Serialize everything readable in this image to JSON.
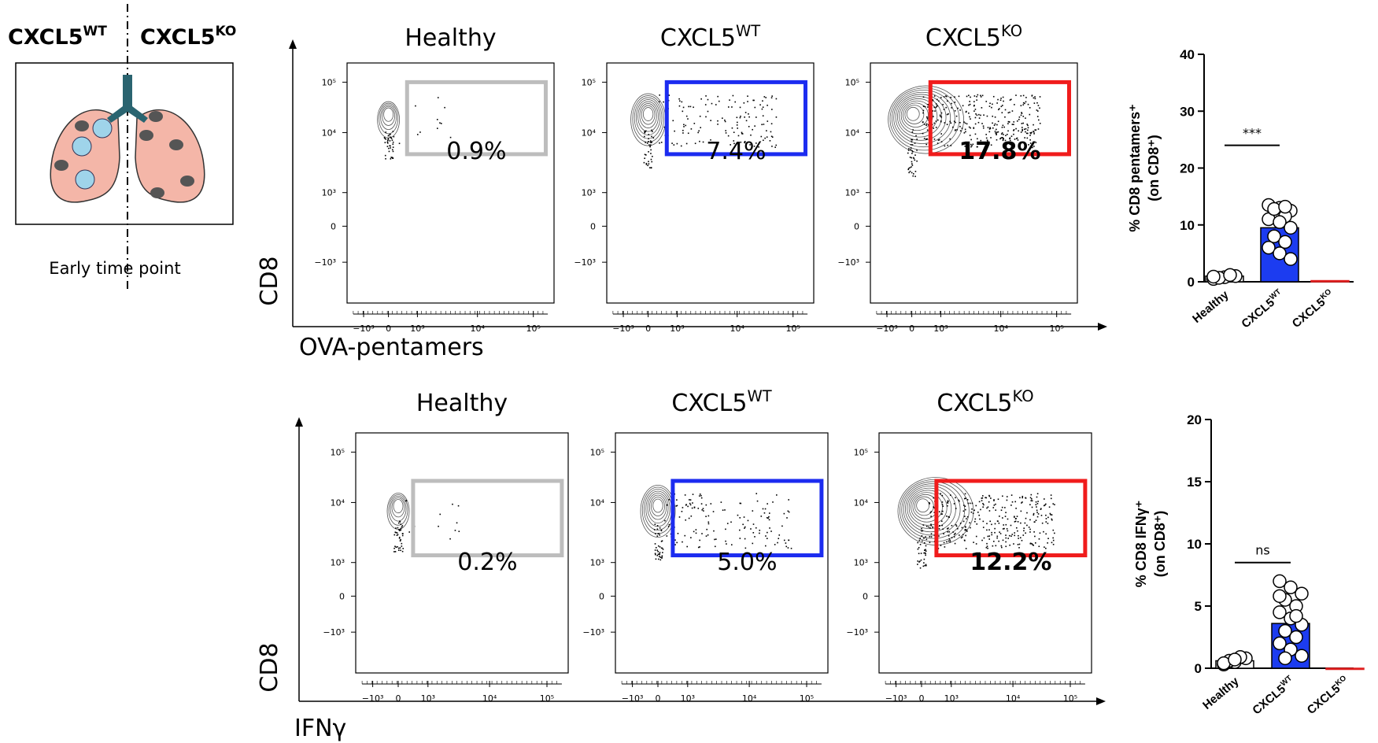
{
  "schematic": {
    "left": {
      "text": "CXCL5",
      "sup": "WT"
    },
    "right": {
      "text": "CXCL5",
      "sup": "KO"
    },
    "caption": "Early time point"
  },
  "flow_axis_ticks": {
    "y": [
      "10⁵",
      "10⁴",
      "10³",
      "0",
      "−10³"
    ],
    "x": [
      "−10³",
      "0",
      "10³",
      "10⁴",
      "10⁵"
    ]
  },
  "flow_rows": [
    {
      "y_label": "CD8",
      "x_label": "OVA-pentamers",
      "plots": [
        {
          "title": {
            "text": "Healthy"
          },
          "gate_label": "0.9%",
          "gate_color": "#bdbdbd"
        },
        {
          "title": {
            "text": "CXCL5",
            "sup": "WT"
          },
          "gate_label": "7.4%",
          "gate_color": "#1c2cf0"
        },
        {
          "title": {
            "text": "CXCL5",
            "sup": "KO"
          },
          "gate_label": "17.8%",
          "gate_color": "#f01c1c"
        }
      ]
    },
    {
      "y_label": "CD8",
      "x_label": "IFNγ",
      "plots": [
        {
          "title": {
            "text": "Healthy"
          },
          "gate_label": "0.2%",
          "gate_color": "#bdbdbd"
        },
        {
          "title": {
            "text": "CXCL5",
            "sup": "WT"
          },
          "gate_label": "5.0%",
          "gate_color": "#1c2cf0"
        },
        {
          "title": {
            "text": "CXCL5",
            "sup": "KO"
          },
          "gate_label": "12.2%",
          "gate_color": "#f01c1c"
        }
      ]
    }
  ],
  "chart_data": [
    {
      "type": "bar",
      "y_label": [
        "% CD8 pentamers⁺",
        "(on CD8⁺)"
      ],
      "categories": [
        {
          "text": "Healthy"
        },
        {
          "text": "CXCL5",
          "sup": "WT"
        },
        {
          "text": "CXCL5",
          "sup": "KO"
        }
      ],
      "values": [
        1,
        9.5,
        0.2
      ],
      "colors": [
        "#ffffff",
        "#1c3cf0",
        "#e02020"
      ],
      "points": [
        [
          0.5,
          0.8,
          1,
          0.7,
          1.2,
          0.9
        ],
        [
          13.5,
          13,
          12.5,
          12,
          11.5,
          11,
          10.5,
          9.5,
          8,
          7,
          6,
          5,
          4,
          12.8,
          13.2
        ],
        []
      ],
      "annotation": {
        "text": "***",
        "value": 24
      },
      "ylim": [
        0,
        40
      ],
      "yticks": [
        0,
        10,
        20,
        30,
        40
      ]
    },
    {
      "type": "bar",
      "y_label": [
        "% CD8 IFNγ⁺",
        "(on CD8⁺)"
      ],
      "categories": [
        {
          "text": "Healthy"
        },
        {
          "text": "CXCL5",
          "sup": "WT"
        },
        {
          "text": "CXCL5",
          "sup": "KO"
        }
      ],
      "values": [
        0.6,
        3.6,
        0
      ],
      "colors": [
        "#ffffff",
        "#1c3cf0",
        "#e02020"
      ],
      "points": [
        [
          0.3,
          0.5,
          0.8,
          0.6,
          0.9,
          0.4,
          0.7
        ],
        [
          7,
          6.5,
          6,
          5.5,
          5,
          4.5,
          4,
          3.5,
          3,
          2.5,
          2,
          1.5,
          1,
          0.8,
          4.2,
          5.8
        ],
        []
      ],
      "annotation": {
        "text": "ns",
        "value": 8.5
      },
      "ylim": [
        0,
        20
      ],
      "yticks": [
        0,
        5,
        10,
        15,
        20
      ]
    }
  ]
}
